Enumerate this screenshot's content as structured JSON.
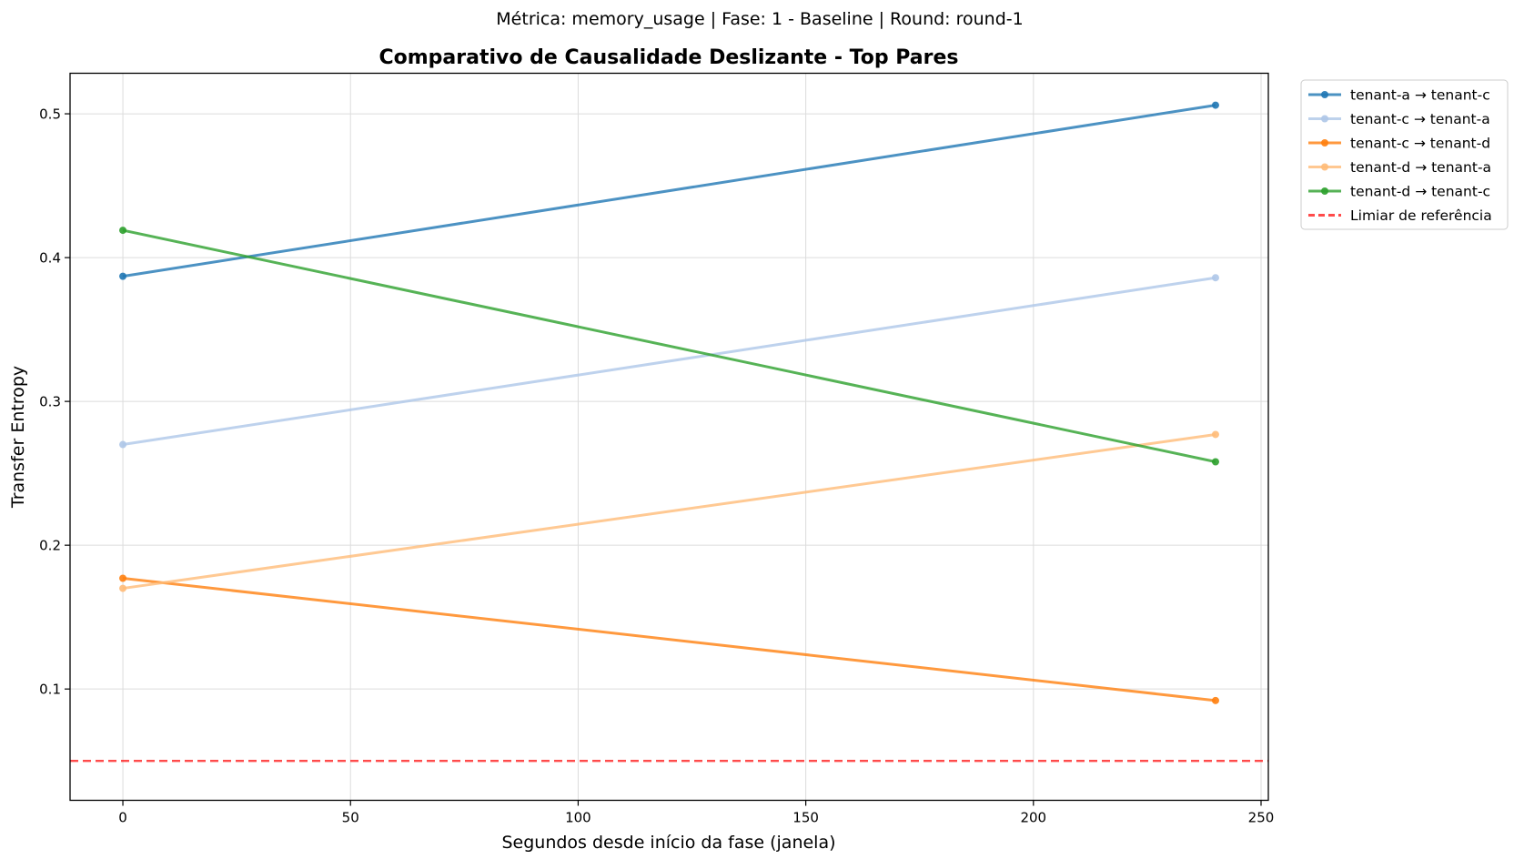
{
  "chart_data": {
    "type": "line",
    "suptitle": "Métrica: memory_usage | Fase: 1 - Baseline | Round: round-1",
    "title": "Comparativo de Causalidade Deslizante - Top Pares",
    "xlabel": "Segundos desde início da fase (janela)",
    "ylabel": "Transfer Entropy",
    "xlim": [
      -11.6,
      251.6
    ],
    "ylim": [
      0.0226,
      0.5282
    ],
    "xticks": [
      "0",
      "50",
      "100",
      "150",
      "200",
      "250"
    ],
    "yticks": [
      "0.1",
      "0.2",
      "0.3",
      "0.4",
      "0.5"
    ],
    "grid": true,
    "legend_position": "outside-top-right",
    "x": [
      0,
      240
    ],
    "series": [
      {
        "name": "tenant-a → tenant-c",
        "values": [
          0.387,
          0.506
        ],
        "color": "#1f77b4"
      },
      {
        "name": "tenant-c → tenant-a",
        "values": [
          0.27,
          0.386
        ],
        "color": "#aec7e8"
      },
      {
        "name": "tenant-c → tenant-d",
        "values": [
          0.177,
          0.092
        ],
        "color": "#ff7f0e"
      },
      {
        "name": "tenant-d → tenant-a",
        "values": [
          0.17,
          0.277
        ],
        "color": "#ffbb78"
      },
      {
        "name": "tenant-d → tenant-c",
        "values": [
          0.419,
          0.258
        ],
        "color": "#2ca02c"
      }
    ],
    "reference_line": {
      "name": "Limiar de referência",
      "value": 0.05,
      "color": "#ff0000",
      "style": "dashed"
    }
  }
}
